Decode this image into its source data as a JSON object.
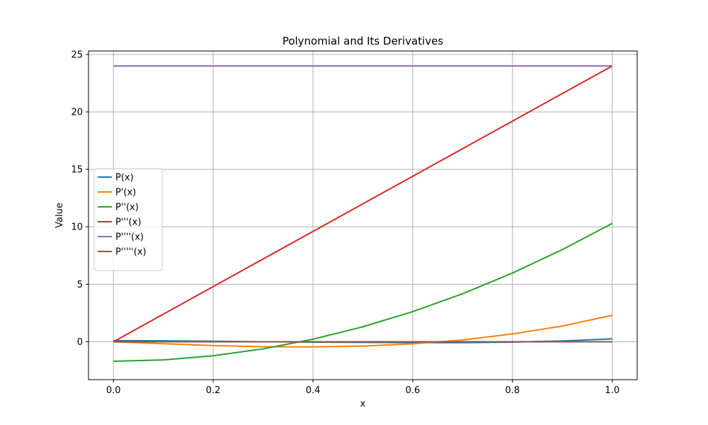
{
  "chart_data": {
    "type": "line",
    "title": "Polynomial and Its Derivatives",
    "xlabel": "x",
    "ylabel": "Value",
    "xlim": [
      -0.05,
      1.05
    ],
    "ylim": [
      -3.3,
      25.3
    ],
    "xticks": [
      0.0,
      0.2,
      0.4,
      0.6,
      0.8,
      1.0
    ],
    "xtick_labels": [
      "0.0",
      "0.2",
      "0.4",
      "0.6",
      "0.8",
      "1.0"
    ],
    "yticks": [
      0,
      5,
      10,
      15,
      20,
      25
    ],
    "ytick_labels": [
      "0",
      "5",
      "10",
      "15",
      "20",
      "25"
    ],
    "grid": true,
    "legend_position": "center-left",
    "x": [
      0.0,
      0.1,
      0.2,
      0.3,
      0.4,
      0.5,
      0.6,
      0.7,
      0.8,
      0.9,
      1.0
    ],
    "series": [
      {
        "name": "P(x)",
        "color": "#1f77b4",
        "values": [
          0.1,
          0.08,
          0.04,
          0.0,
          -0.03,
          -0.06,
          -0.08,
          -0.08,
          -0.03,
          0.07,
          0.25
        ]
      },
      {
        "name": "P'(x)",
        "color": "#ff7f0e",
        "values": [
          0.0,
          -0.17,
          -0.33,
          -0.43,
          -0.45,
          -0.38,
          -0.18,
          0.15,
          0.68,
          1.37,
          2.3
        ]
      },
      {
        "name": "P''(x)",
        "color": "#2ca02c",
        "values": [
          -1.7,
          -1.58,
          -1.22,
          -0.62,
          0.22,
          1.3,
          2.62,
          4.18,
          5.98,
          8.02,
          10.3
        ]
      },
      {
        "name": "P'''(x)",
        "color": "#d62728",
        "values": [
          0.0,
          2.4,
          4.8,
          7.2,
          9.6,
          12.0,
          14.4,
          16.8,
          19.2,
          21.6,
          24.0
        ]
      },
      {
        "name": "P''''(x)",
        "color": "#9467bd",
        "values": [
          24,
          24,
          24,
          24,
          24,
          24,
          24,
          24,
          24,
          24,
          24
        ]
      },
      {
        "name": "P'''''(x)",
        "color": "#8c564b",
        "values": [
          0,
          0,
          0,
          0,
          0,
          0,
          0,
          0,
          0,
          0,
          0
        ]
      }
    ]
  }
}
